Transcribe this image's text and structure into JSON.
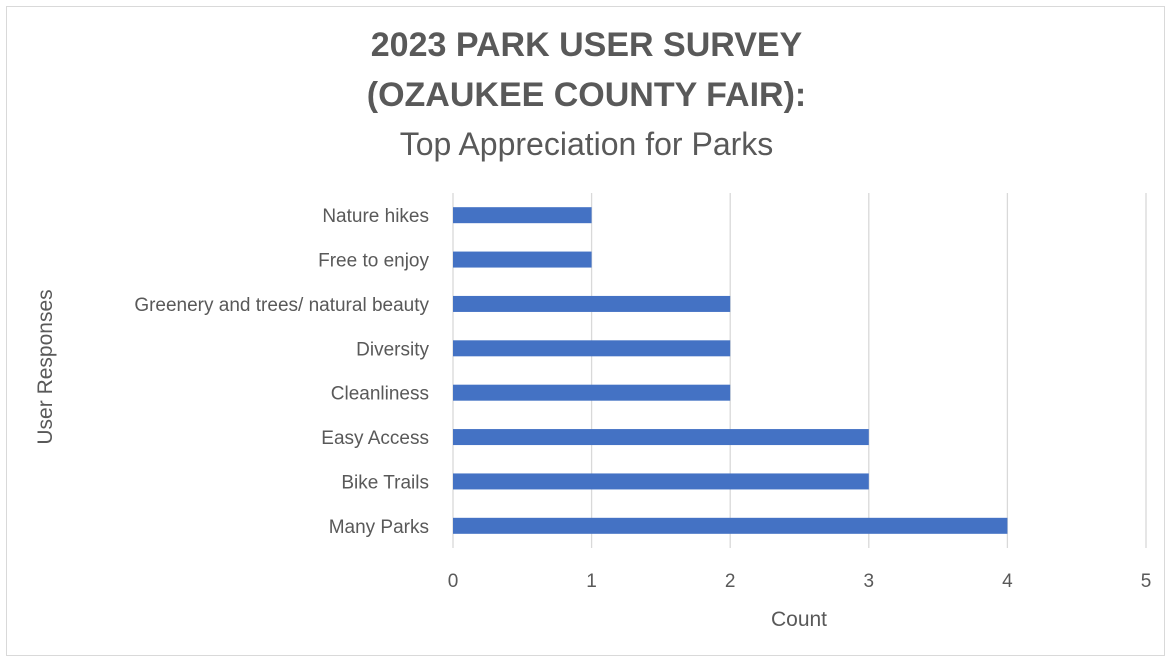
{
  "chart_data": {
    "type": "bar",
    "orientation": "horizontal",
    "title_line1": "2023 PARK USER SURVEY",
    "title_line2": "(OZAUKEE COUNTY FAIR):",
    "subtitle": "Top Appreciation for Parks",
    "xlabel": "Count",
    "ylabel": "User Responses",
    "categories": [
      "Nature hikes",
      "Free to enjoy",
      "Greenery and trees/ natural beauty",
      "Diversity",
      "Cleanliness",
      "Easy Access",
      "Bike Trails",
      "Many Parks"
    ],
    "values": [
      1,
      1,
      2,
      2,
      2,
      3,
      3,
      4
    ],
    "xlim": [
      0,
      5
    ],
    "xticks": [
      "0",
      "1",
      "2",
      "3",
      "4",
      "5"
    ],
    "grid": "vertical",
    "bar_color": "#4472c4",
    "grid_color": "#d9d9d9"
  }
}
